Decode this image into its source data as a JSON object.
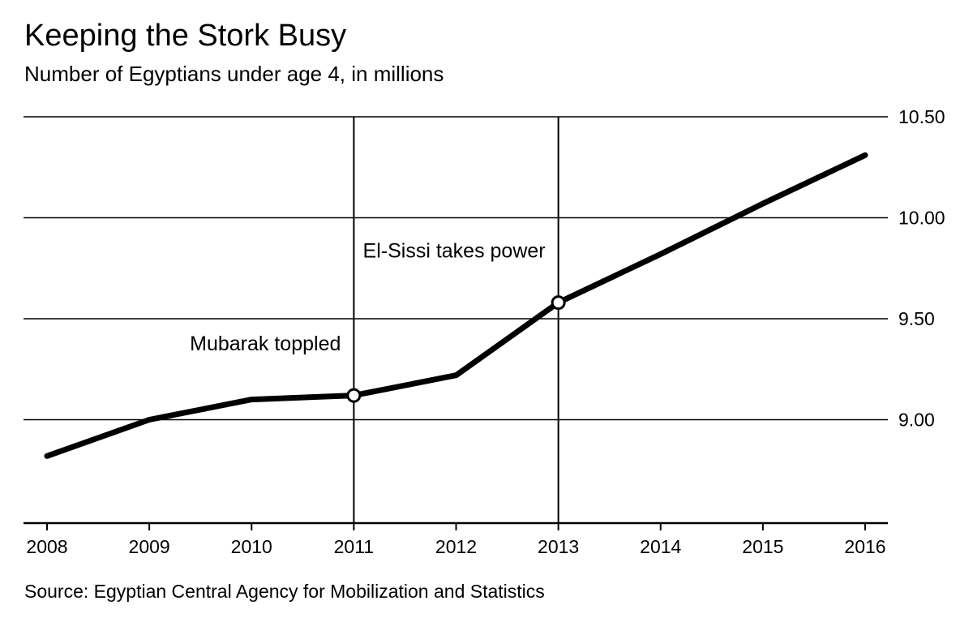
{
  "header": {
    "title": "Keeping the Stork Busy",
    "subtitle": "Number of Egyptians under age 4, in millions"
  },
  "footer": {
    "source": "Source: Egyptian Central Agency for Mobilization and Statistics"
  },
  "chart_data": {
    "type": "line",
    "title": "Keeping the Stork Busy",
    "subtitle": "Number of Egyptians under age 4, in millions",
    "source": "Source: Egyptian Central Agency for Mobilization and Statistics",
    "x": [
      2008,
      2009,
      2010,
      2011,
      2012,
      2013,
      2014,
      2015,
      2016
    ],
    "x_tick_labels": [
      "2008",
      "2009",
      "2010",
      "2011",
      "2012",
      "2013",
      "2014",
      "2015",
      "2016"
    ],
    "series": [
      {
        "name": "Egyptians under age 4, millions",
        "values": [
          8.82,
          9.0,
          9.1,
          9.12,
          9.22,
          9.58,
          9.82,
          10.07,
          10.31
        ],
        "color": "#000000"
      }
    ],
    "y_ticks": [
      {
        "value": 9.0,
        "label": "9.00"
      },
      {
        "value": 9.5,
        "label": "9.50"
      },
      {
        "value": 10.0,
        "label": "10.00"
      },
      {
        "value": 10.5,
        "label": "10.50"
      }
    ],
    "ylim": [
      8.49,
      10.5
    ],
    "grid": "horizontal",
    "legend": "none",
    "background": "#ffffff",
    "annotations": [
      {
        "x": 2011,
        "y": 9.12,
        "label": "Mubarak toppled",
        "label_y": 9.38,
        "marker": "open-circle",
        "vline": true
      },
      {
        "x": 2013,
        "y": 9.58,
        "label": "El-Sissi takes power",
        "label_y": 9.84,
        "marker": "open-circle",
        "vline": true
      }
    ]
  }
}
